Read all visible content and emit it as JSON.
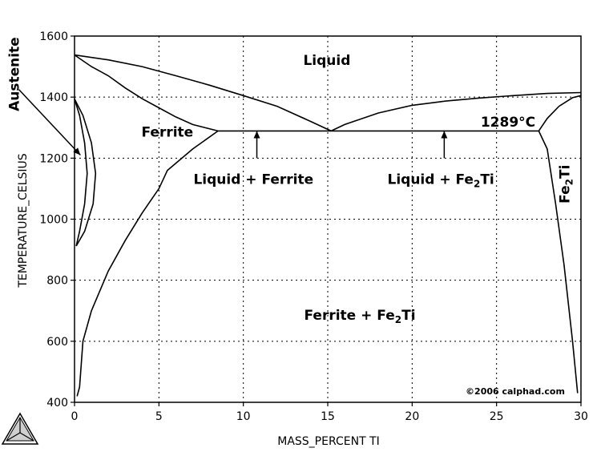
{
  "chart_data": {
    "type": "line",
    "title": "",
    "xlabel": "MASS_PERCENT TI",
    "ylabel": "TEMPERATURE_CELSIUS",
    "xlim": [
      0,
      30
    ],
    "ylim": [
      400,
      1600
    ],
    "x_ticks": [
      0,
      5,
      10,
      15,
      20,
      25,
      30
    ],
    "y_ticks": [
      400,
      600,
      800,
      1000,
      1200,
      1400,
      1600
    ],
    "grid": true,
    "eutectic_temperature": "1289°C",
    "copyright": "©2006 calphad.com",
    "series": [
      {
        "name": "",
        "color": "#000000",
        "points": [
          [
            0,
            1538
          ],
          [
            2,
            1522
          ],
          [
            4,
            1500
          ],
          [
            6,
            1470
          ],
          [
            8,
            1439
          ],
          [
            10,
            1405
          ],
          [
            12,
            1370
          ],
          [
            14,
            1320
          ],
          [
            15.2,
            1289
          ]
        ]
      },
      {
        "name": "",
        "color": "#000000",
        "points": [
          [
            0,
            1538
          ],
          [
            1,
            1500
          ],
          [
            2,
            1470
          ],
          [
            3,
            1430
          ],
          [
            4,
            1395
          ],
          [
            5,
            1365
          ],
          [
            6,
            1335
          ],
          [
            7,
            1310
          ],
          [
            8.5,
            1289
          ]
        ]
      },
      {
        "name": "",
        "color": "#000000",
        "points": [
          [
            8.5,
            1289
          ],
          [
            7,
            1230
          ],
          [
            5.5,
            1160
          ],
          [
            5,
            1100
          ],
          [
            4,
            1020
          ],
          [
            3,
            930
          ],
          [
            2,
            830
          ],
          [
            1,
            700
          ],
          [
            0.5,
            600
          ],
          [
            0.3,
            450
          ],
          [
            0.15,
            420
          ]
        ]
      },
      {
        "name": "",
        "color": "#000000",
        "points": [
          [
            0,
            1394
          ],
          [
            0.5,
            1340
          ],
          [
            1,
            1250
          ],
          [
            1.25,
            1150
          ],
          [
            1.1,
            1050
          ],
          [
            0.6,
            960
          ],
          [
            0.1,
            912
          ]
        ]
      },
      {
        "name": "",
        "color": "#000000",
        "points": [
          [
            0,
            1394
          ],
          [
            0.3,
            1340
          ],
          [
            0.6,
            1250
          ],
          [
            0.75,
            1150
          ],
          [
            0.6,
            1050
          ],
          [
            0.3,
            960
          ],
          [
            0.1,
            912
          ]
        ]
      },
      {
        "name": "",
        "color": "#000000",
        "points": [
          [
            15.2,
            1289
          ],
          [
            16,
            1310
          ],
          [
            18,
            1348
          ],
          [
            20,
            1373
          ],
          [
            22,
            1387
          ],
          [
            24,
            1397
          ],
          [
            26,
            1405
          ],
          [
            28,
            1412
          ],
          [
            30,
            1415
          ]
        ]
      },
      {
        "name": "",
        "color": "#000000",
        "points": [
          [
            27.5,
            1289
          ],
          [
            28,
            1230
          ],
          [
            28.5,
            1050
          ],
          [
            29,
            850
          ],
          [
            29.5,
            600
          ],
          [
            29.8,
            430
          ]
        ]
      },
      {
        "name": "",
        "color": "#000000",
        "points": [
          [
            27.5,
            1289
          ],
          [
            28,
            1330
          ],
          [
            28.7,
            1370
          ],
          [
            29.5,
            1398
          ],
          [
            30,
            1405
          ]
        ]
      },
      {
        "name": "",
        "color": "#e8231f",
        "points": [
          [
            8.5,
            1289
          ],
          [
            27.5,
            1289
          ]
        ]
      }
    ],
    "region_labels": [
      {
        "text": "Liquid",
        "x": 14.95,
        "y": 1505
      },
      {
        "text": "Ferrite",
        "x": 5.5,
        "y": 1270
      },
      {
        "text": "Liquid + Ferrite",
        "x": 10.6,
        "y": 1116
      },
      {
        "text": "Liquid + Fe₂Ti",
        "x": 21.7,
        "y": 1116
      },
      {
        "text": "Ferrite + Fe₂Ti",
        "x": 16.9,
        "y": 670
      }
    ],
    "vertical_labels": [
      {
        "text": "Austenite",
        "x": -3.3,
        "y": 1475
      },
      {
        "text": "Fe₂Ti",
        "x": 29.3,
        "y": 1115
      }
    ],
    "arrows": [
      {
        "from": [
          10.8,
          1200
        ],
        "to": [
          10.8,
          1289
        ]
      },
      {
        "from": [
          21.9,
          1200
        ],
        "to": [
          21.9,
          1289
        ]
      },
      {
        "from": [
          -3.3,
          1425
        ],
        "to": [
          0.35,
          1210
        ]
      }
    ]
  },
  "logo_icon": "thermo-calc-triangle-logo"
}
